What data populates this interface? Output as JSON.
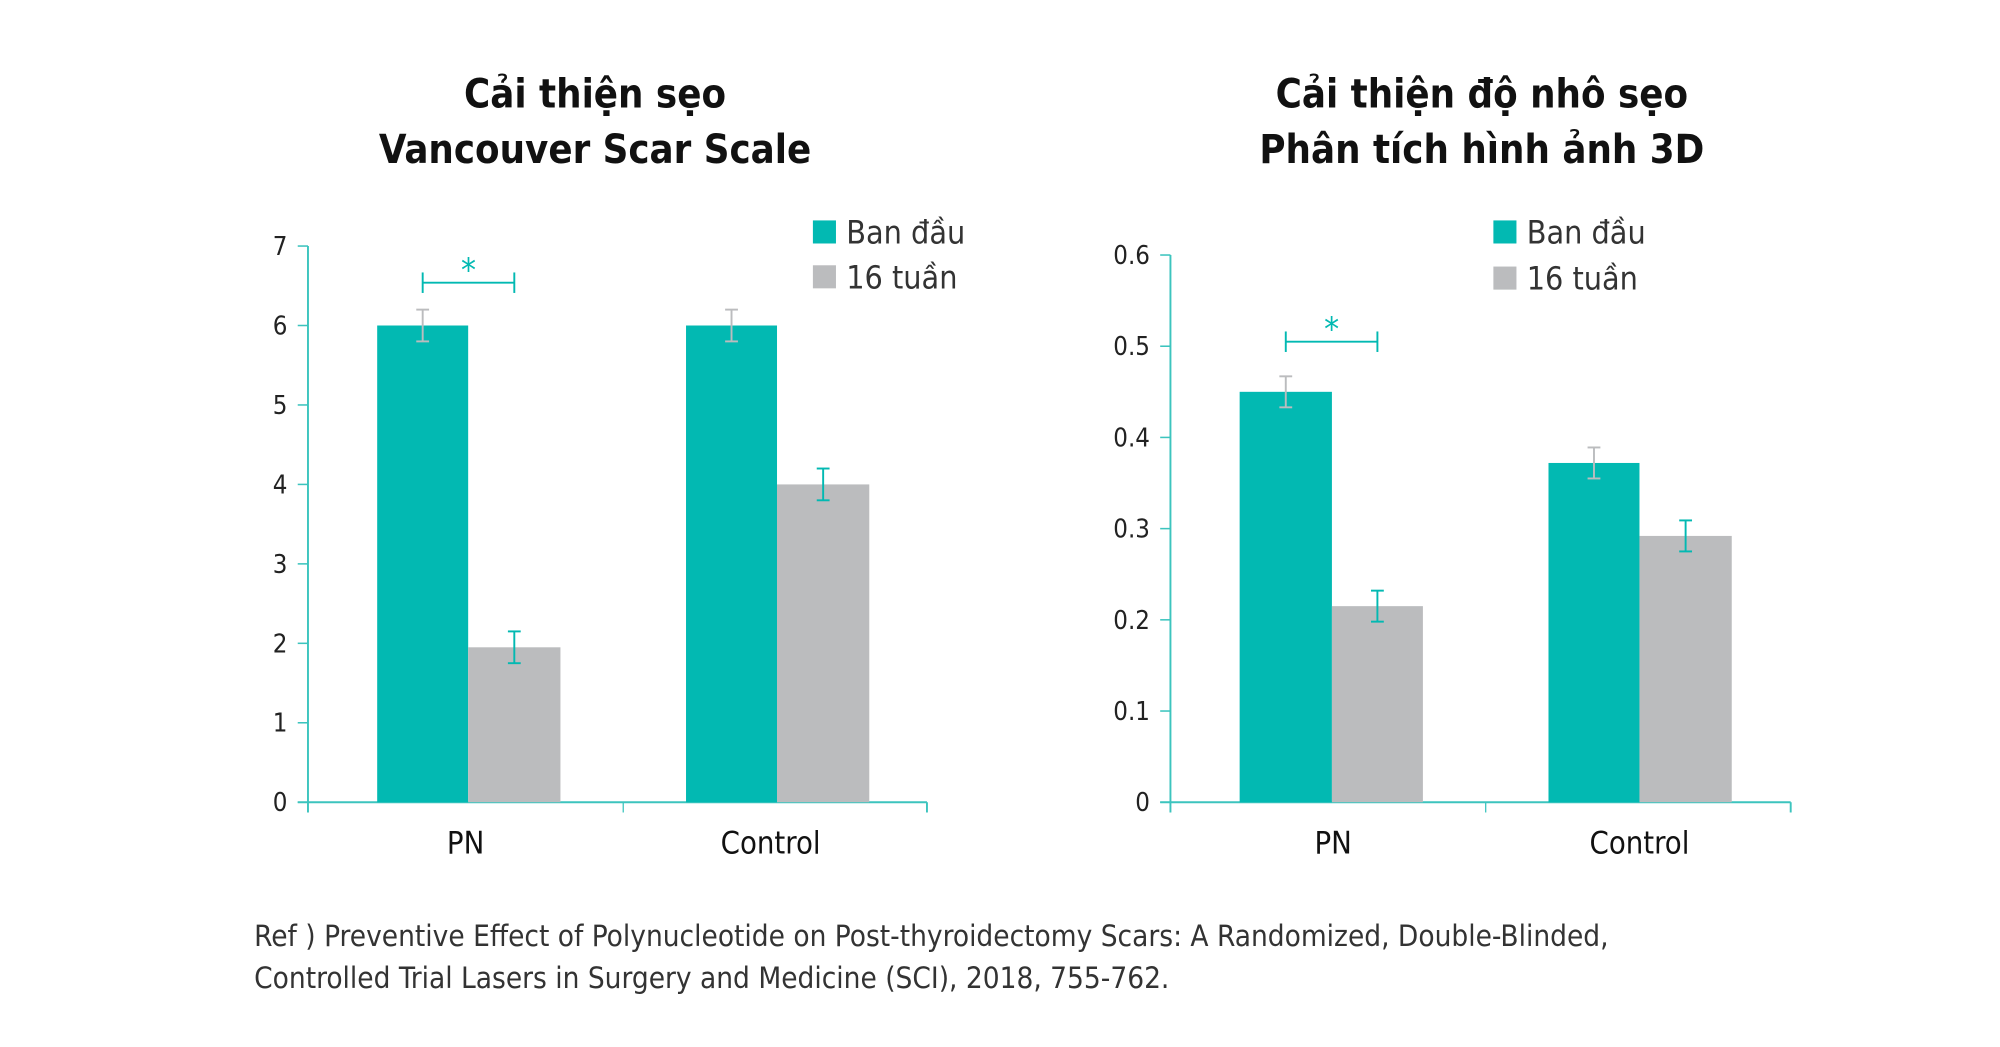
{
  "colors": {
    "teal": "#02b9b2",
    "gray": "#bbbcbe",
    "axis": "#3cc4be"
  },
  "chart_data": [
    {
      "type": "bar",
      "title": [
        "Cải thiện sẹo",
        "Vancouver Scar Scale"
      ],
      "categories": [
        "PN",
        "Control"
      ],
      "ylim": [
        0,
        7
      ],
      "yticks": [
        "0",
        "1",
        "2",
        "3",
        "4",
        "5",
        "6",
        "7"
      ],
      "series": [
        {
          "name": "Ban đầu",
          "values": [
            6.0,
            6.0
          ],
          "errors": [
            0.2,
            0.2
          ]
        },
        {
          "name": "16 tuần",
          "values": [
            1.95,
            4.0
          ],
          "errors": [
            0.2,
            0.2
          ]
        }
      ],
      "significance": {
        "category": "PN",
        "label": "*"
      },
      "legend": "top-right"
    },
    {
      "type": "bar",
      "title": [
        "Cải thiện độ nhô sẹo",
        "Phân tích hình ảnh 3D"
      ],
      "categories": [
        "PN",
        "Control"
      ],
      "ylim": [
        0,
        0.6
      ],
      "yticks": [
        "0",
        "0.1",
        "0.2",
        "0.3",
        "0.4",
        "0.5",
        "0.6"
      ],
      "series": [
        {
          "name": "Ban đầu",
          "values": [
            0.45,
            0.372
          ],
          "errors": [
            0.017,
            0.017
          ]
        },
        {
          "name": "16 tuần",
          "values": [
            0.215,
            0.292
          ],
          "errors": [
            0.017,
            0.017
          ]
        }
      ],
      "significance": {
        "category": "PN",
        "label": "*"
      },
      "legend": "top-right"
    }
  ],
  "reference": [
    "Ref ) Preventive Effect of Polynucleotide on Post-thyroidectomy Scars: A Randomized, Double-Blinded,",
    "Controlled Trial Lasers in Surgery and Medicine (SCI), 2018, 755-762."
  ]
}
